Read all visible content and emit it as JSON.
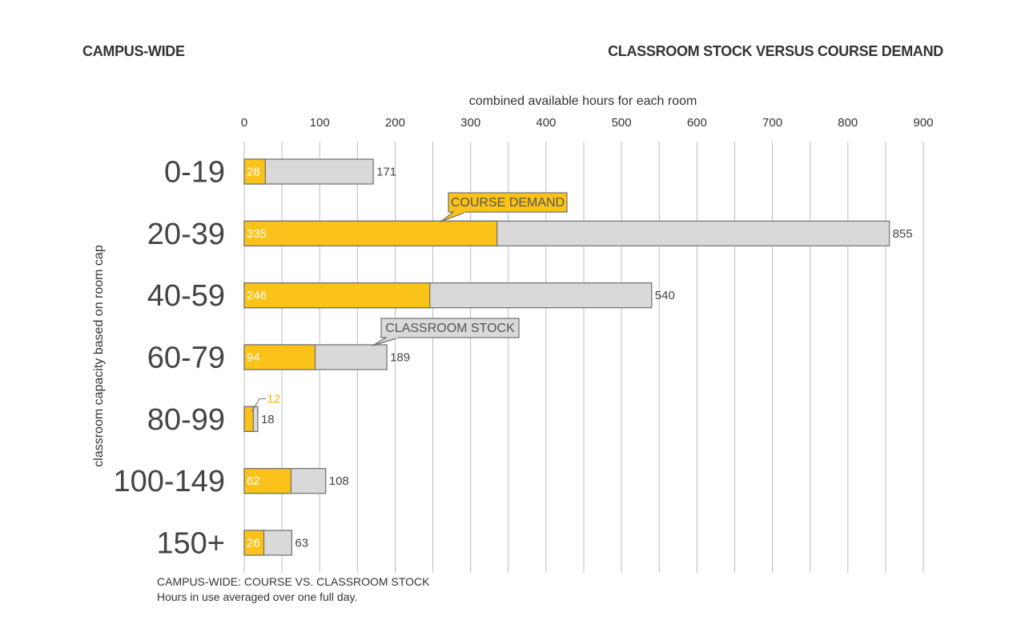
{
  "header": {
    "left": "CAMPUS-WIDE",
    "right": "CLASSROOM STOCK VERSUS COURSE DEMAND"
  },
  "footnote": {
    "line1": "CAMPUS-WIDE: COURSE VS. CLASSROOM STOCK",
    "line2": "Hours in use averaged over one full day."
  },
  "colors": {
    "demand": "#FBC219",
    "stock": "#D9D9D9",
    "stock_border": "#6E6E6E",
    "grid": "#BDBDBD",
    "demand_label": "#F5B800"
  },
  "chart_data": {
    "type": "bar",
    "orientation": "horizontal",
    "xlabel": "combined available hours for each room",
    "ylabel": "classroom capacity based on room cap",
    "xlim": [
      0,
      900
    ],
    "xticks": [
      0,
      100,
      200,
      300,
      400,
      500,
      600,
      700,
      800,
      900
    ],
    "grid": true,
    "categories": [
      "0-19",
      "20-39",
      "40-59",
      "60-79",
      "80-99",
      "100-149",
      "150+"
    ],
    "series": [
      {
        "name": "COURSE DEMAND",
        "values": [
          28,
          335,
          246,
          94,
          12,
          62,
          26
        ]
      },
      {
        "name": "CLASSROOM STOCK",
        "values": [
          171,
          855,
          540,
          189,
          18,
          108,
          63
        ]
      }
    ],
    "annotations": [
      {
        "text": "COURSE DEMAND",
        "category": "20-39",
        "series": "COURSE DEMAND"
      },
      {
        "text": "CLASSROOM STOCK",
        "category": "60-79",
        "series": "CLASSROOM STOCK"
      }
    ]
  }
}
